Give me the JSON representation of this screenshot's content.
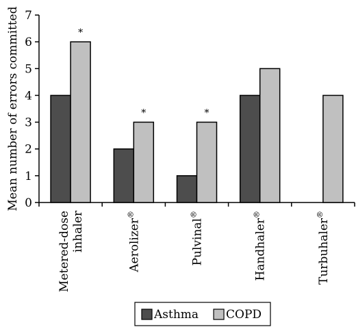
{
  "chart_data": {
    "type": "bar",
    "title": "",
    "xlabel": "",
    "ylabel": "Mean number of errors committed",
    "ylim": [
      0,
      7
    ],
    "yticks": [
      0,
      1,
      2,
      3,
      4,
      5,
      6,
      7
    ],
    "grid": false,
    "legend_position": "bottom",
    "categories": [
      {
        "line1": "Metered-dose",
        "line2": "inhaler",
        "sup": ""
      },
      {
        "line1": "Aerolizer",
        "line2": "",
        "sup": "®"
      },
      {
        "line1": "Pulvinal",
        "line2": "",
        "sup": "®"
      },
      {
        "line1": "Handhaler",
        "line2": "",
        "sup": "®"
      },
      {
        "line1": "Turbuhaler",
        "line2": "",
        "sup": "®"
      }
    ],
    "series": [
      {
        "name": "Asthma",
        "color": "#4d4d4d",
        "values": [
          4,
          2,
          1,
          4,
          null
        ]
      },
      {
        "name": "COPD",
        "color": "#c0c0c0",
        "values": [
          6,
          3,
          3,
          5,
          4
        ]
      }
    ],
    "annotations": [
      {
        "category_index": 0,
        "series": "COPD",
        "text": "*"
      },
      {
        "category_index": 1,
        "series": "COPD",
        "text": "*"
      },
      {
        "category_index": 2,
        "series": "COPD",
        "text": "*"
      }
    ]
  }
}
